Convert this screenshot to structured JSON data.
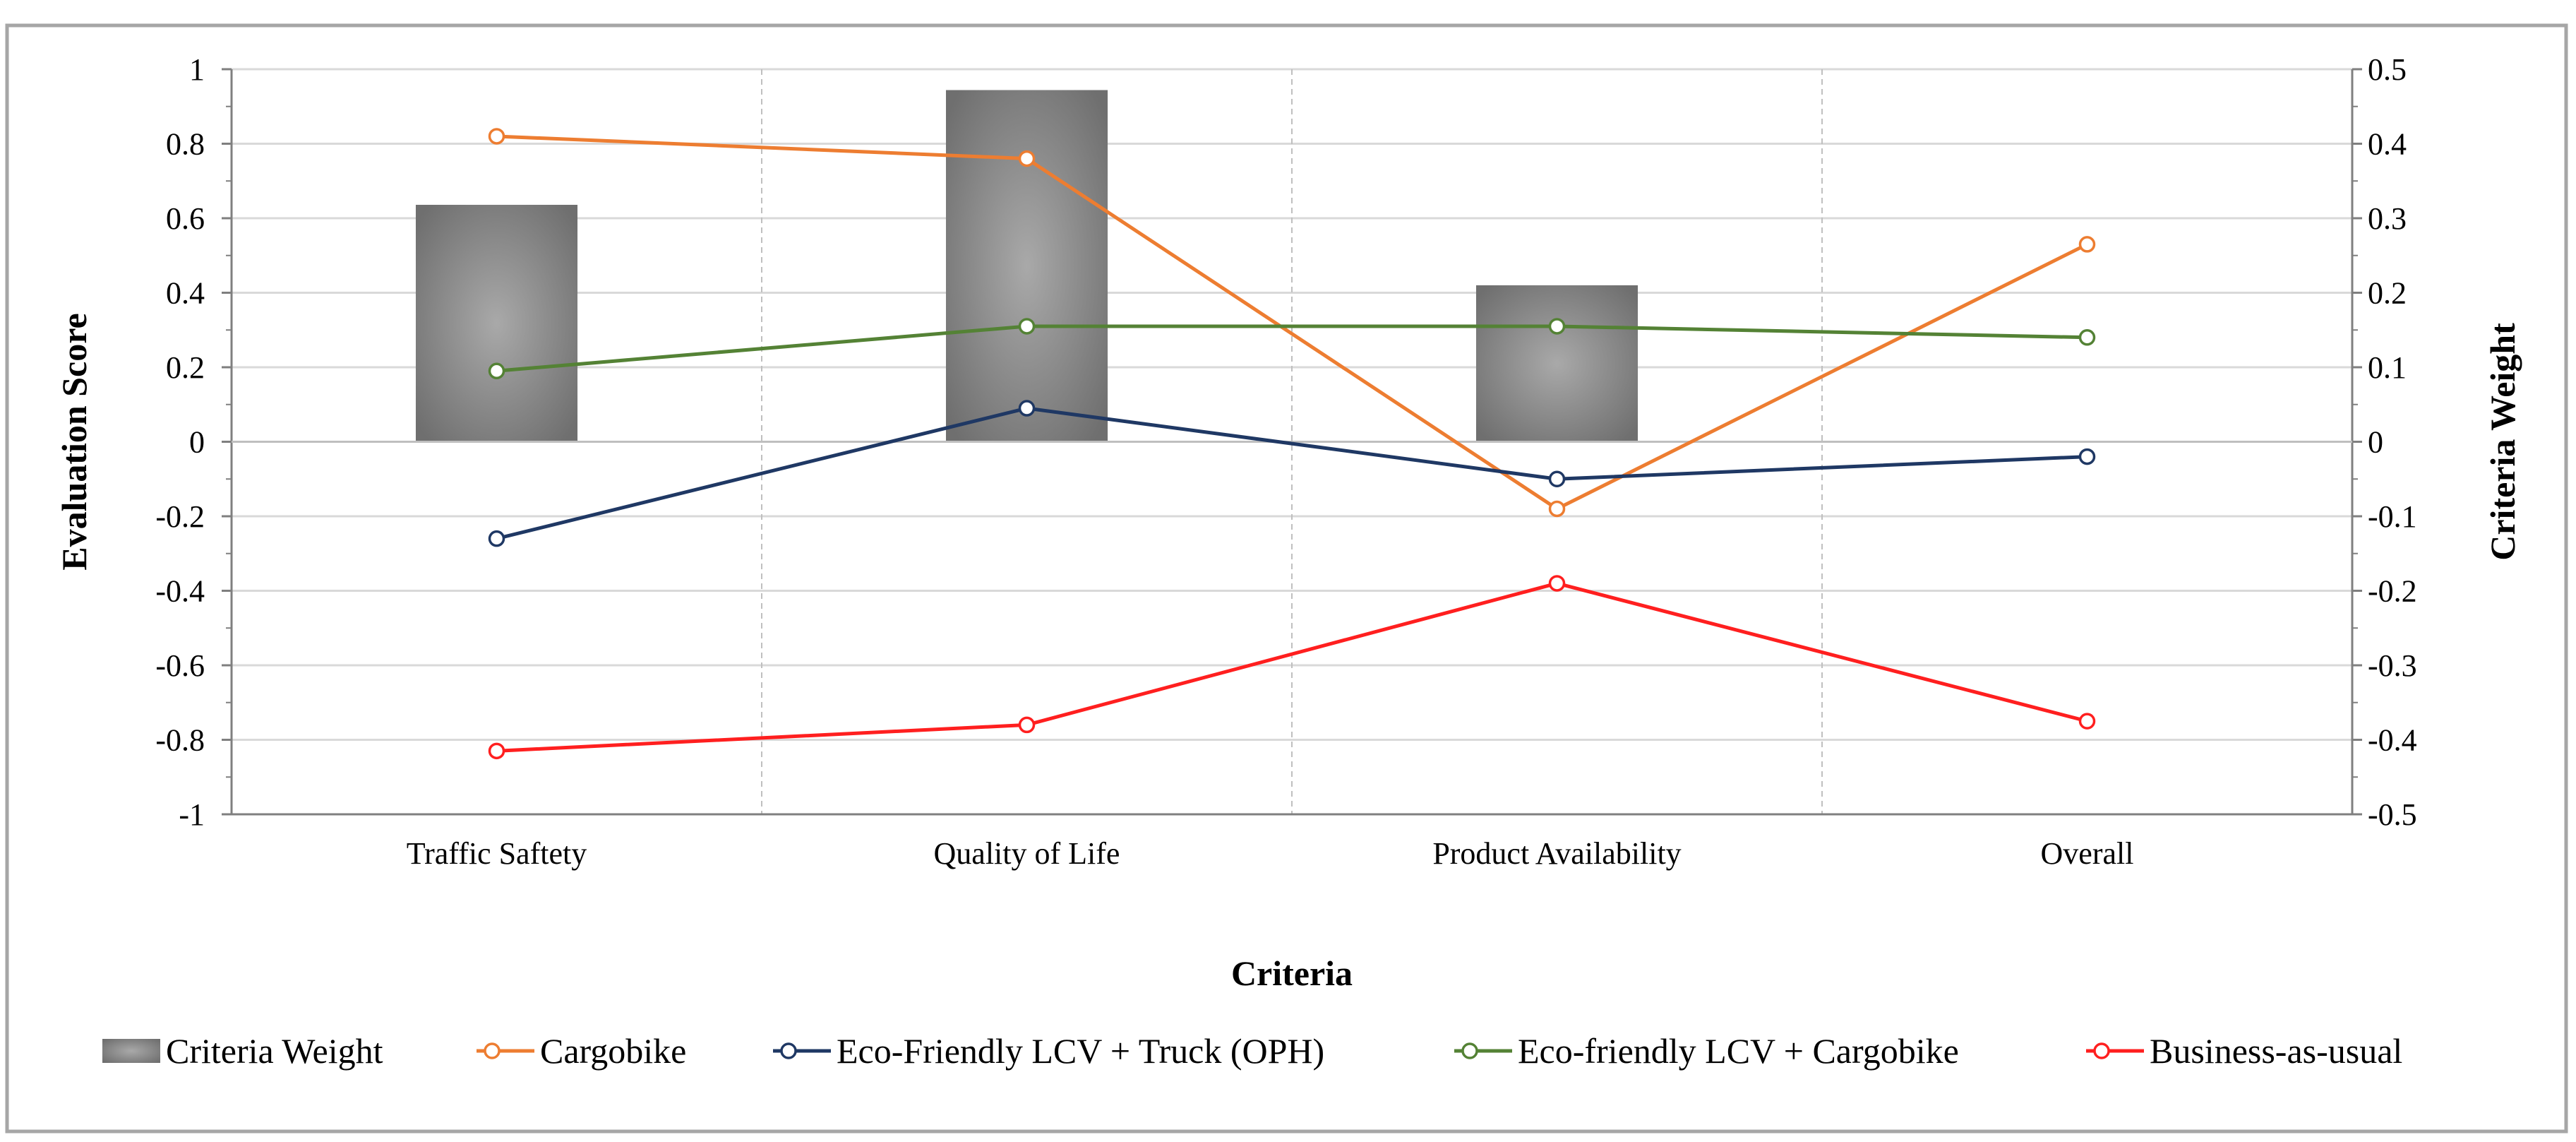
{
  "chart_data": {
    "type": "bar+line",
    "categories": [
      "Traffic Saftety",
      "Quality of Life",
      "Product Availability",
      "Overall"
    ],
    "xlabel": "Criteria",
    "ylabel": "Evaluation Score",
    "y2label": "Criteria Weight",
    "ylim": [
      -1,
      1
    ],
    "y2lim": [
      -0.5,
      0.5
    ],
    "yticks": [
      "1",
      "0.8",
      "0.6",
      "0.4",
      "0.2",
      "0",
      "-0.2",
      "-0.4",
      "-0.6",
      "-0.8",
      "-1"
    ],
    "y2ticks": [
      "0.5",
      "0.4",
      "0.3",
      "0.2",
      "0.1",
      "0",
      "-0.1",
      "-0.2",
      "-0.3",
      "-0.4",
      "-0.5"
    ],
    "grid": true,
    "legend_position": "bottom",
    "bars": {
      "name": "Criteria Weight",
      "axis": "right",
      "values": [
        0.318,
        0.472,
        0.21,
        null
      ],
      "color": "#808080"
    },
    "series": [
      {
        "name": "Cargobike",
        "color": "#ed7d31",
        "values": [
          0.82,
          0.76,
          -0.18,
          0.53
        ]
      },
      {
        "name": "Eco-Friendly LCV + Truck (OPH)",
        "color": "#1f3864",
        "values": [
          -0.26,
          0.09,
          -0.1,
          -0.04
        ]
      },
      {
        "name": "Eco-friendly LCV + Cargobike",
        "color": "#548235",
        "values": [
          0.19,
          0.31,
          0.31,
          0.28
        ]
      },
      {
        "name": "Business-as-usual",
        "color": "#ff1f1f",
        "values": [
          -0.83,
          -0.76,
          -0.38,
          -0.75
        ]
      }
    ]
  }
}
